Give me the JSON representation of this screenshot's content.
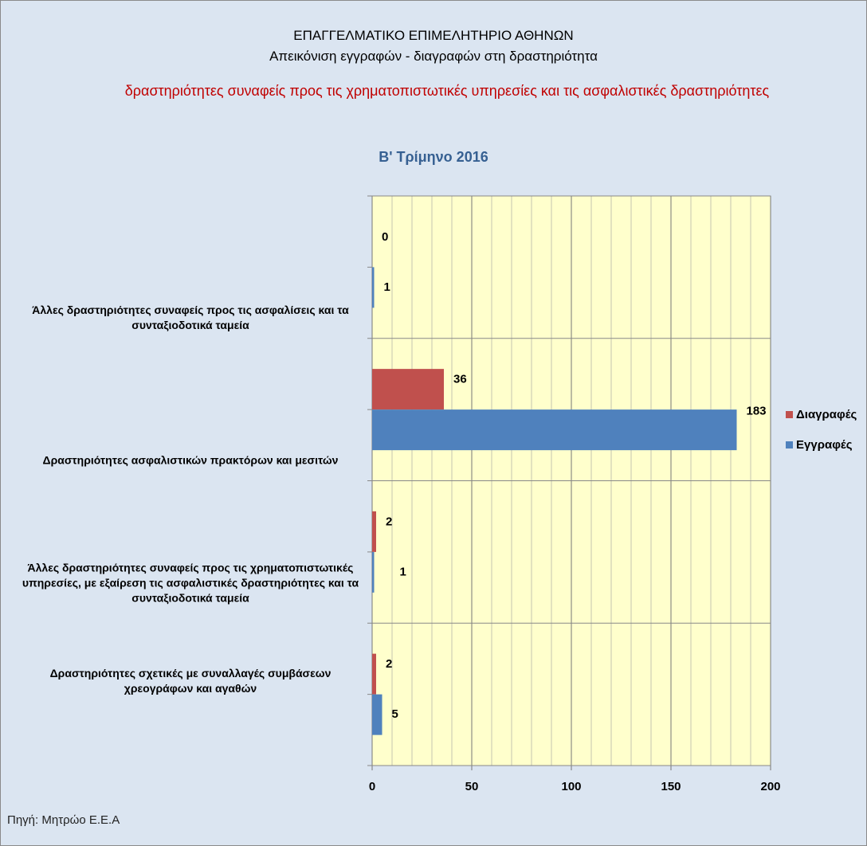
{
  "chart_data": {
    "type": "barh",
    "title": "ΕΠΑΓΓΕΛΜΑΤΙΚΟ ΕΠΙΜΕΛΗΤΗΡΙΟ ΑΘΗΝΩΝ",
    "subtitle": "Απεικόνιση εγγραφών - διαγραφών στη  δραστηριότητα",
    "subtitle_2": "δραστηριότητες συναφείς προς τις χρηματοπιστωτικές υπηρεσίες και τις ασφαλιστικές δραστηριότητες",
    "period": "Β' Τρίμηνο 2016",
    "source": "Πηγή: Μητρώο Ε.Ε.Α",
    "categories": [
      "Άλλες δραστηριότητες συναφείς προς τις ασφαλίσεις και τα συνταξιοδοτικά ταμεία",
      "Δραστηριότητες ασφαλιστικών πρακτόρων και μεσιτών",
      "Άλλες δραστηριότητες συναφείς προς τις χρηματοπιστωτικές υπηρεσίες, με εξαίρεση τις ασφαλιστικές δραστηριότητες και τα συνταξιοδοτικά ταμεία",
      "Δραστηριότητες σχετικές με συναλλαγές συμβάσεων χρεογράφων και αγαθών"
    ],
    "series": [
      {
        "name": "Διαγραφές",
        "color": "#c0504d",
        "values": [
          0,
          36,
          2,
          2
        ]
      },
      {
        "name": "Εγγραφές",
        "color": "#4f81bd",
        "values": [
          1,
          183,
          1,
          5
        ]
      }
    ],
    "xlim": [
      0,
      200
    ],
    "xticks": [
      0,
      50,
      100,
      150,
      200
    ],
    "grid": true,
    "legend": "right"
  }
}
